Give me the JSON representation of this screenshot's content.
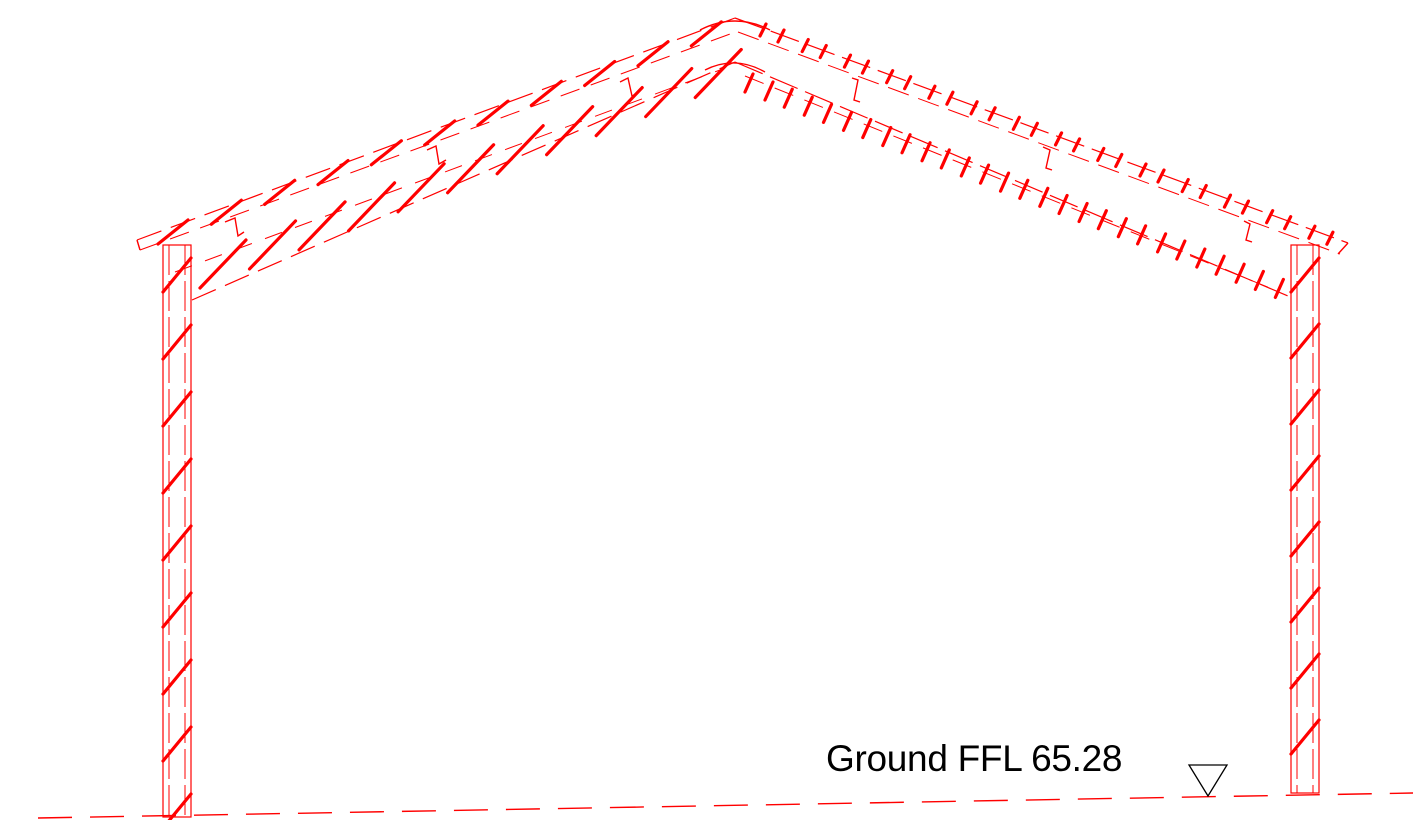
{
  "drawing": {
    "level_label": "Ground FFL 65.28",
    "line_color": "#ff0000",
    "text_color": "#000000",
    "background": "#ffffff",
    "symbols": [
      "level-marker-icon"
    ]
  }
}
